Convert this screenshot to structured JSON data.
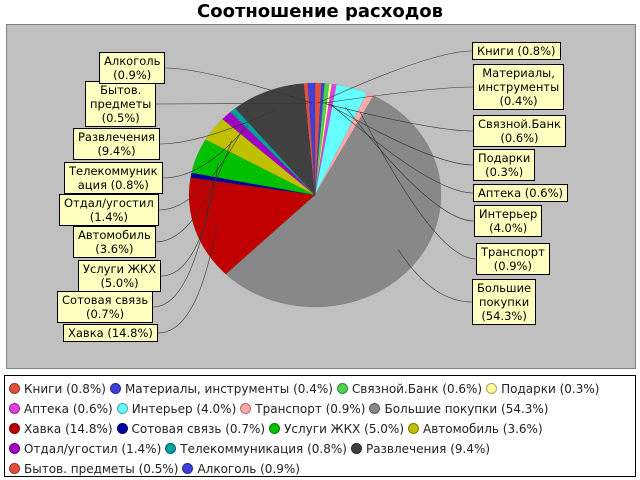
{
  "chart_data": {
    "type": "pie",
    "title": "Соотношение расходов",
    "slices": [
      {
        "label": "Книги",
        "percent": 0.8,
        "color": "#e05040"
      },
      {
        "label": "Материалы, инструменты",
        "percent": 0.4,
        "color": "#4040d8"
      },
      {
        "label": "Связной.Банк",
        "percent": 0.6,
        "color": "#50d050"
      },
      {
        "label": "Подарки",
        "percent": 0.3,
        "color": "#ffff99"
      },
      {
        "label": "Аптека",
        "percent": 0.6,
        "color": "#e040e0"
      },
      {
        "label": "Интерьер",
        "percent": 4.0,
        "color": "#66ffff"
      },
      {
        "label": "Транспорт",
        "percent": 0.9,
        "color": "#ffaaaa"
      },
      {
        "label": "Большие покупки",
        "percent": 54.3,
        "color": "#888888"
      },
      {
        "label": "Хавка",
        "percent": 14.8,
        "color": "#c00000"
      },
      {
        "label": "Сотовая связь",
        "percent": 0.7,
        "color": "#0000a0"
      },
      {
        "label": "Услуги ЖКХ",
        "percent": 5.0,
        "color": "#00c000"
      },
      {
        "label": "Автомобиль",
        "percent": 3.6,
        "color": "#c0c000"
      },
      {
        "label": "Отдал/угостил",
        "percent": 1.4,
        "color": "#a000c0"
      },
      {
        "label": "Телекоммуникация",
        "percent": 0.8,
        "color": "#00a0a0"
      },
      {
        "label": "Развлечения",
        "percent": 9.4,
        "color": "#404040"
      },
      {
        "label": "Бытов. предметы",
        "percent": 0.5,
        "color": "#e05040"
      },
      {
        "label": "Алкоголь",
        "percent": 0.9,
        "color": "#4040d8"
      }
    ],
    "callouts": [
      {
        "lines": [
          "Алкоголь",
          "(0.9%)"
        ]
      },
      {
        "lines": [
          "Бытов.",
          "предметы",
          "(0.5%)"
        ]
      },
      {
        "lines": [
          "Развлечения",
          "(9.4%)"
        ]
      },
      {
        "lines": [
          "Телекоммуник",
          "ация (0.8%)"
        ]
      },
      {
        "lines": [
          "Отдал/угостил",
          "(1.4%)"
        ]
      },
      {
        "lines": [
          "Автомобиль",
          "(3.6%)"
        ]
      },
      {
        "lines": [
          "Услуги ЖКХ",
          "(5.0%)"
        ]
      },
      {
        "lines": [
          "Сотовая связь",
          "(0.7%)"
        ]
      },
      {
        "lines": [
          "Хавка (14.8%)"
        ]
      },
      {
        "lines": [
          "Книги (0.8%)"
        ]
      },
      {
        "lines": [
          "Материалы,",
          "инструменты",
          "(0.4%)"
        ]
      },
      {
        "lines": [
          "Связной.Банк",
          "(0.6%)"
        ]
      },
      {
        "lines": [
          "Подарки",
          "(0.3%)"
        ]
      },
      {
        "lines": [
          "Аптека (0.6%)"
        ]
      },
      {
        "lines": [
          "Интерьер",
          "(4.0%)"
        ]
      },
      {
        "lines": [
          "Транспорт",
          "(0.9%)"
        ]
      },
      {
        "lines": [
          "Большие",
          "покупки",
          "(54.3%)"
        ]
      }
    ],
    "legend_rows": [
      [
        "Книги (0.8%)",
        "Материалы, инструменты (0.4%)",
        "Связной.Банк (0.6%)",
        "Подарки (0.3%)"
      ],
      [
        "Аптека (0.6%)",
        "Интерьер (4.0%)",
        "Транспорт (0.9%)",
        "Большие покупки (54.3%)"
      ],
      [
        "Хавка (14.8%)",
        "Сотовая связь (0.7%)",
        "Услуги ЖКХ (5.0%)",
        "Автомобиль (3.6%)"
      ],
      [
        "Отдал/угостил (1.4%)",
        "Телекоммуникация (0.8%)",
        "Развлечения (9.4%)"
      ],
      [
        "Бытов. предметы (0.5%)",
        "Алкоголь (0.9%)"
      ]
    ],
    "legend_placement": "bottom"
  }
}
